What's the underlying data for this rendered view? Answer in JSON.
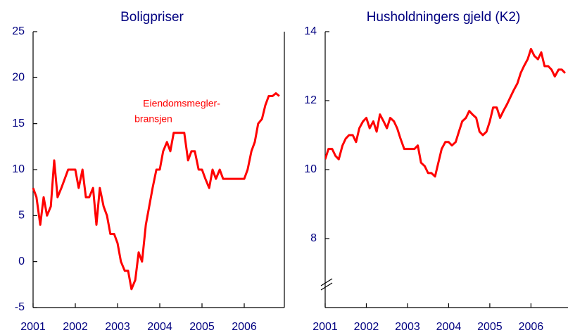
{
  "chart_data": [
    {
      "type": "line",
      "title": "Boligpriser",
      "x": [
        2001,
        2001.08,
        2001.17,
        2001.25,
        2001.33,
        2001.42,
        2001.5,
        2001.58,
        2001.67,
        2001.75,
        2001.83,
        2001.92,
        2002,
        2002.08,
        2002.17,
        2002.25,
        2002.33,
        2002.42,
        2002.5,
        2002.58,
        2002.67,
        2002.75,
        2002.83,
        2002.92,
        2003,
        2003.08,
        2003.17,
        2003.25,
        2003.33,
        2003.42,
        2003.5,
        2003.58,
        2003.67,
        2003.75,
        2003.83,
        2003.92,
        2004,
        2004.08,
        2004.17,
        2004.25,
        2004.33,
        2004.42,
        2004.5,
        2004.58,
        2004.67,
        2004.75,
        2004.83,
        2004.92,
        2005,
        2005.08,
        2005.17,
        2005.25,
        2005.33,
        2005.42,
        2005.5,
        2005.58,
        2005.67,
        2005.75,
        2005.83,
        2005.92,
        2006,
        2006.08,
        2006.17,
        2006.25,
        2006.33,
        2006.42,
        2006.5,
        2006.58,
        2006.67,
        2006.75,
        2006.83
      ],
      "series": [
        {
          "name": "Eiendomsmeglerbransjen",
          "color": "#ff0000",
          "values": [
            8,
            7,
            4,
            7,
            5,
            6,
            11,
            7,
            8,
            9,
            10,
            10,
            10,
            8,
            10,
            7,
            7,
            8,
            4,
            8,
            6,
            5,
            3,
            3,
            2,
            0,
            -1,
            -1,
            -3,
            -2,
            1,
            0,
            4,
            6,
            8,
            10,
            10,
            12,
            13,
            12,
            14,
            14,
            14,
            14,
            11,
            12,
            12,
            10,
            10,
            9,
            8,
            10,
            9,
            10,
            9,
            9,
            9,
            9,
            9,
            9,
            9,
            10,
            12,
            13,
            15,
            15.5,
            17,
            18,
            18,
            18.3,
            18
          ]
        }
      ],
      "annotation": [
        "Eiendomsmegler-",
        "bransjen"
      ],
      "xlim": [
        2001,
        2006.95
      ],
      "xticks": [
        2001,
        2002,
        2003,
        2004,
        2005,
        2006
      ],
      "ylim": [
        -5,
        25
      ],
      "yticks": [
        -5,
        0,
        5,
        10,
        15,
        20,
        25
      ]
    },
    {
      "type": "line",
      "title": "Husholdningers gjeld (K2)",
      "x": [
        2001,
        2001.08,
        2001.17,
        2001.25,
        2001.33,
        2001.42,
        2001.5,
        2001.58,
        2001.67,
        2001.75,
        2001.83,
        2001.92,
        2002,
        2002.08,
        2002.17,
        2002.25,
        2002.33,
        2002.42,
        2002.5,
        2002.58,
        2002.67,
        2002.75,
        2002.83,
        2002.92,
        2003,
        2003.08,
        2003.17,
        2003.25,
        2003.33,
        2003.42,
        2003.5,
        2003.58,
        2003.67,
        2003.75,
        2003.83,
        2003.92,
        2004,
        2004.08,
        2004.17,
        2004.25,
        2004.33,
        2004.42,
        2004.5,
        2004.58,
        2004.67,
        2004.75,
        2004.83,
        2004.92,
        2005,
        2005.08,
        2005.17,
        2005.25,
        2005.33,
        2005.42,
        2005.5,
        2005.58,
        2005.67,
        2005.75,
        2005.83,
        2005.92,
        2006,
        2006.08,
        2006.17,
        2006.25,
        2006.33,
        2006.42,
        2006.5,
        2006.58,
        2006.67,
        2006.75,
        2006.83
      ],
      "series": [
        {
          "name": "Husholdningers gjeld",
          "color": "#ff0000",
          "values": [
            10.3,
            10.6,
            10.6,
            10.4,
            10.3,
            10.7,
            10.9,
            11.0,
            11.0,
            10.8,
            11.2,
            11.4,
            11.5,
            11.2,
            11.4,
            11.1,
            11.6,
            11.4,
            11.2,
            11.5,
            11.4,
            11.2,
            10.9,
            10.6,
            10.6,
            10.6,
            10.6,
            10.7,
            10.2,
            10.1,
            9.9,
            9.9,
            9.8,
            10.2,
            10.6,
            10.8,
            10.8,
            10.7,
            10.8,
            11.1,
            11.4,
            11.5,
            11.7,
            11.6,
            11.5,
            11.1,
            11.0,
            11.1,
            11.4,
            11.8,
            11.8,
            11.5,
            11.7,
            11.9,
            12.1,
            12.3,
            12.5,
            12.8,
            13.0,
            13.2,
            13.5,
            13.3,
            13.2,
            13.4,
            13.0,
            13.0,
            12.9,
            12.7,
            12.9,
            12.9,
            12.8
          ]
        }
      ],
      "xlim": [
        2001,
        2006.9
      ],
      "xticks": [
        2001,
        2002,
        2003,
        2004,
        2005,
        2006
      ],
      "ylim": [
        6,
        14
      ],
      "yticks": [
        8,
        10,
        12,
        14
      ],
      "axis_break": true
    }
  ]
}
